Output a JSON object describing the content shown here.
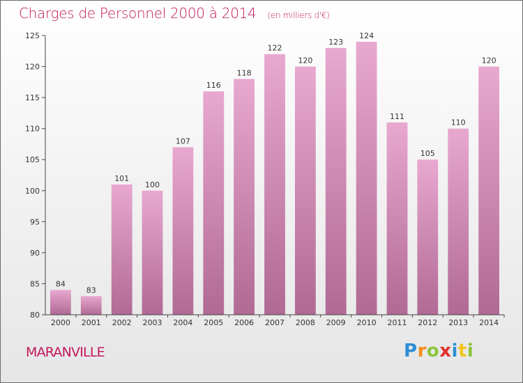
{
  "title": "Charges de Personnel 2000 à 2014",
  "subtitle": "(en milliers d'€)",
  "place": "MARANVILLE",
  "logo": {
    "text": "Proxiti",
    "letters": [
      {
        "ch": "P",
        "color": "#2e8fd6"
      },
      {
        "ch": "r",
        "color": "#f28c1c"
      },
      {
        "ch": "o",
        "color": "#8cc43c"
      },
      {
        "ch": "x",
        "color": "#e0302a"
      },
      {
        "ch": "i",
        "color": "#2e8fd6"
      },
      {
        "ch": "t",
        "color": "#f2c41c"
      },
      {
        "ch": "i",
        "color": "#8cc43c"
      }
    ]
  },
  "chart_data": {
    "type": "bar",
    "categories": [
      "2000",
      "2001",
      "2002",
      "2003",
      "2004",
      "2005",
      "2006",
      "2007",
      "2008",
      "2009",
      "2010",
      "2011",
      "2012",
      "2013",
      "2014"
    ],
    "values": [
      84,
      83,
      101,
      100,
      107,
      116,
      118,
      122,
      120,
      123,
      124,
      111,
      105,
      110,
      120
    ],
    "title": "Charges de Personnel 2000 à 2014",
    "xlabel": "",
    "ylabel": "",
    "ylim": [
      80,
      125
    ],
    "yticks": [
      80,
      85,
      90,
      95,
      100,
      105,
      110,
      115,
      120,
      125
    ],
    "grid": false,
    "legend": "none",
    "bar_color_top": "#e8a8d0",
    "bar_color_bottom": "#b06a94"
  }
}
